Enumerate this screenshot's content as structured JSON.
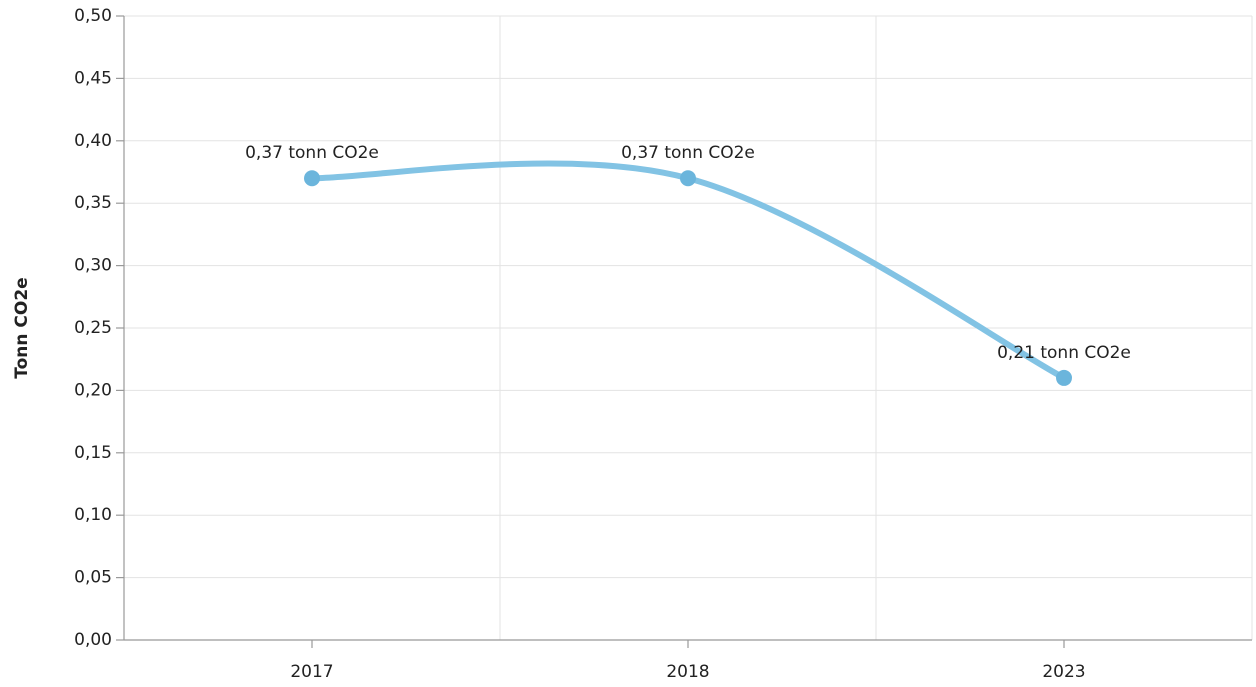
{
  "chart_data": {
    "type": "line",
    "y_label": "Tonn CO2e",
    "categories": [
      "2017",
      "2018",
      "2023"
    ],
    "series": [
      {
        "name": "Tonn CO2e",
        "color": "#82c3e4",
        "marker_color": "#6bb5dc",
        "values": [
          0.37,
          0.37,
          0.21
        ],
        "value_labels": [
          "0,37 tonn CO2e",
          "0,37 tonn CO2e",
          "0,21 tonn CO2e"
        ]
      }
    ],
    "ylim": [
      0,
      0.5
    ],
    "yticks": [
      {
        "value": 0,
        "label": "0,00"
      },
      {
        "value": 0.05,
        "label": "0,05"
      },
      {
        "value": 0.1,
        "label": "0,10"
      },
      {
        "value": 0.15,
        "label": "0,15"
      },
      {
        "value": 0.2,
        "label": "0,20"
      },
      {
        "value": 0.25,
        "label": "0,25"
      },
      {
        "value": 0.3,
        "label": "0,30"
      },
      {
        "value": 0.35,
        "label": "0,35"
      },
      {
        "value": 0.4,
        "label": "0,40"
      },
      {
        "value": 0.45,
        "label": "0,45"
      },
      {
        "value": 0.5,
        "label": "0,50"
      }
    ],
    "grid": true
  }
}
